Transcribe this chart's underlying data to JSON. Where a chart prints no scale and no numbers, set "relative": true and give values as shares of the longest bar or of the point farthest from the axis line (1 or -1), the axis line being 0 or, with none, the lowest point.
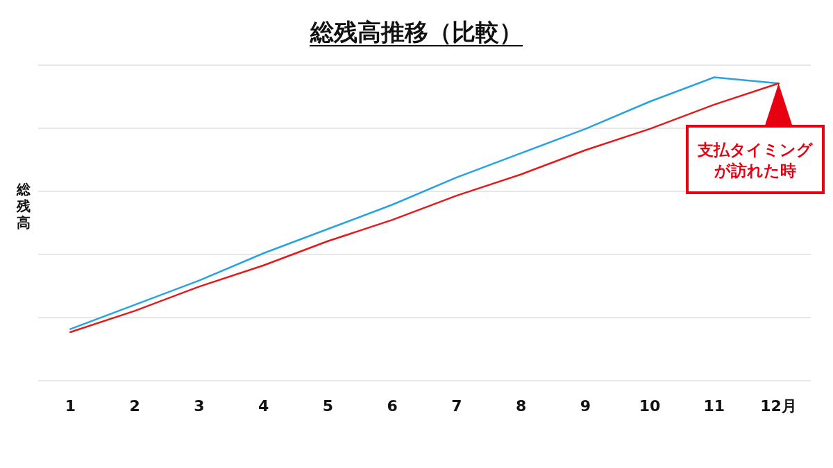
{
  "chart_data": {
    "type": "line",
    "title": "総残高推移（比較）",
    "ylabel": "総残高",
    "relative": true,
    "grid": true,
    "categories": [
      "1",
      "2",
      "3",
      "4",
      "5",
      "6",
      "7",
      "8",
      "9",
      "10",
      "11",
      "12月"
    ],
    "series": [
      {
        "color": "#29a3df",
        "values": [
          0.17,
          0.25,
          0.33,
          0.42,
          0.5,
          0.58,
          0.67,
          0.75,
          0.83,
          0.92,
          1,
          0.98
        ]
      },
      {
        "color": "#e6191a",
        "values": [
          0.16,
          0.23,
          0.31,
          0.38,
          0.46,
          0.53,
          0.61,
          0.68,
          0.76,
          0.83,
          0.91,
          0.98
        ]
      }
    ],
    "annotations": [
      "支払タイミングが訪れた時"
    ]
  }
}
